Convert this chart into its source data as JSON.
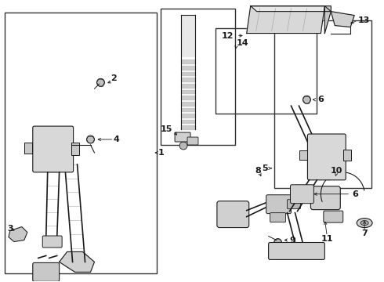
{
  "background_color": "#ffffff",
  "line_color": "#1a1a1a",
  "box_color": "#333333",
  "label_color": "#111111",
  "fig_width": 4.9,
  "fig_height": 3.6,
  "dpi": 100
}
